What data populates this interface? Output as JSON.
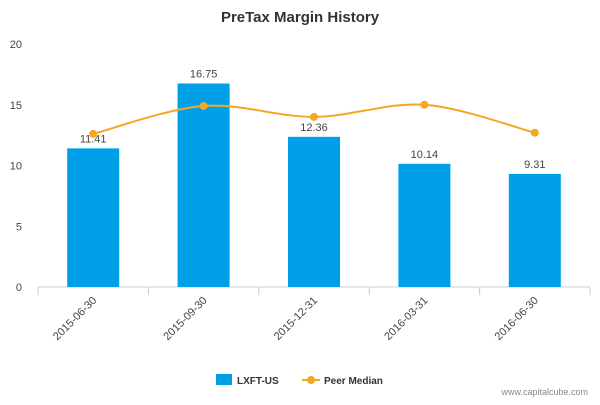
{
  "chart_data": {
    "type": "bar",
    "title": "PreTax Margin History",
    "categories": [
      "2015-06-30",
      "2015-09-30",
      "2015-12-31",
      "2016-03-31",
      "2016-06-30"
    ],
    "series": [
      {
        "name": "LXFT-US",
        "type": "bar",
        "values": [
          11.41,
          16.75,
          12.36,
          10.14,
          9.31
        ],
        "color": "#00A0E8",
        "show_labels": true
      },
      {
        "name": "Peer Median",
        "type": "line",
        "values": [
          12.6,
          14.9,
          14.0,
          15.0,
          12.7
        ],
        "color": "#F5A623"
      }
    ],
    "ylim": [
      0,
      20
    ],
    "yticks": [
      0,
      5,
      10,
      15,
      20
    ],
    "grid": false,
    "legend_position": "bottom-center"
  },
  "footer": {
    "credit": "www.capitalcube.com"
  }
}
